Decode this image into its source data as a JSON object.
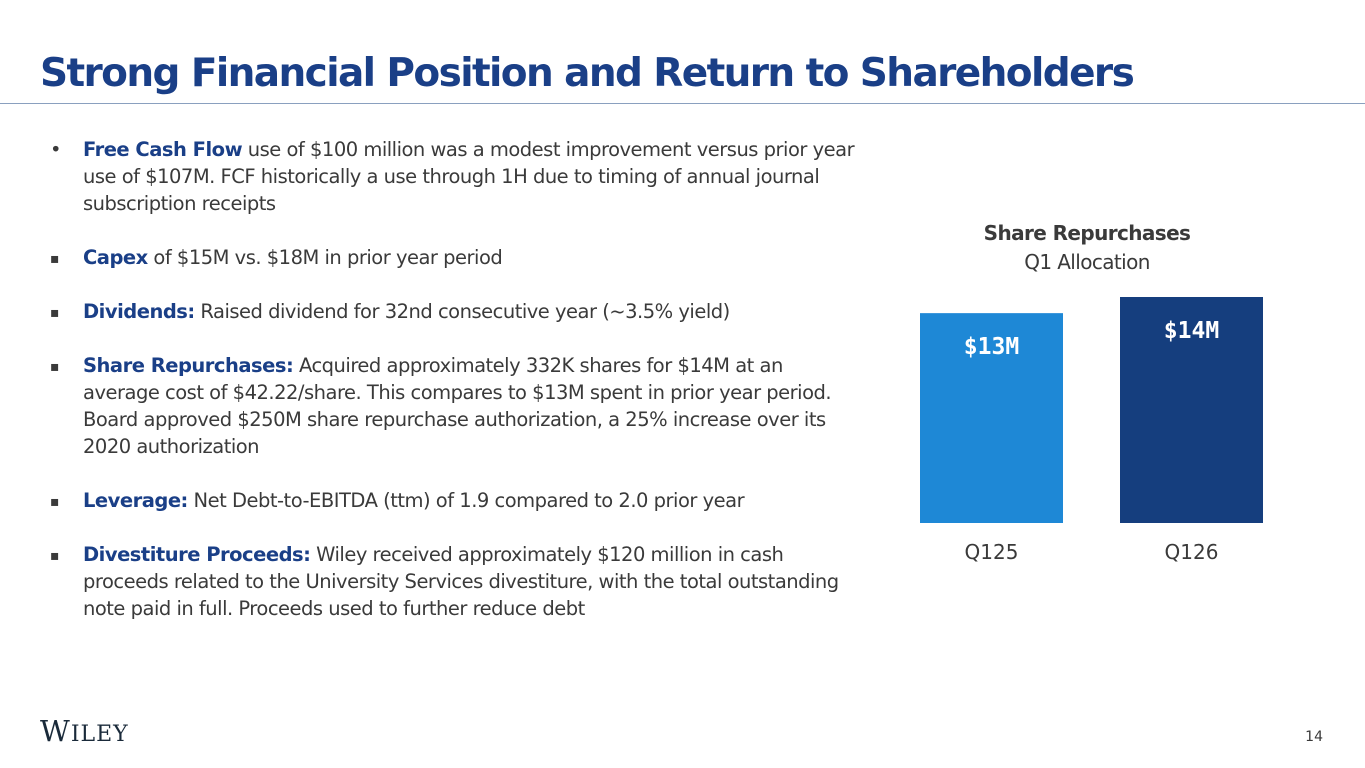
{
  "slide": {
    "title": "Strong Financial Position and Return to Shareholders",
    "page_number": "14",
    "logo_text": "Wiley"
  },
  "bullets": [
    {
      "marker": "•",
      "term": "Free Cash Flow",
      "text": " use of $100 million was a modest improvement versus prior year use of $107M.  FCF historically a use through 1H due to timing of annual journal subscription receipts"
    },
    {
      "marker": "▪",
      "term": "Capex",
      "text": " of $15M vs. $18M in prior year period"
    },
    {
      "marker": "▪",
      "term": "Dividends:",
      "text": " Raised dividend for 32nd consecutive year (~3.5% yield)"
    },
    {
      "marker": "▪",
      "term": "Share Repurchases:",
      "text": " Acquired approximately 332K shares for $14M at an average cost of $42.22/share.  This compares to $13M spent in prior year period. Board approved $250M share repurchase authorization, a 25% increase over its 2020 authorization"
    },
    {
      "marker": "▪",
      "term": "Leverage:",
      "text": " Net Debt-to-EBITDA (ttm) of 1.9 compared to 2.0 prior year"
    },
    {
      "marker": "▪",
      "term": "Divestiture Proceeds:",
      "text": " Wiley received approximately $120 million in cash proceeds related to the University Services divestiture, with the total outstanding note paid in full. Proceeds used to further reduce debt"
    }
  ],
  "chart_data": {
    "type": "bar",
    "title": "Share Repurchases",
    "subtitle": "Q1 Allocation",
    "categories": [
      "Q125",
      "Q126"
    ],
    "values": [
      13,
      14
    ],
    "data_labels": [
      "$13M",
      "$14M"
    ],
    "colors": [
      "#1e88d6",
      "#153e7e"
    ],
    "unit": "$M",
    "xlabel": "",
    "ylabel": "",
    "grid": false,
    "legend": "none"
  }
}
